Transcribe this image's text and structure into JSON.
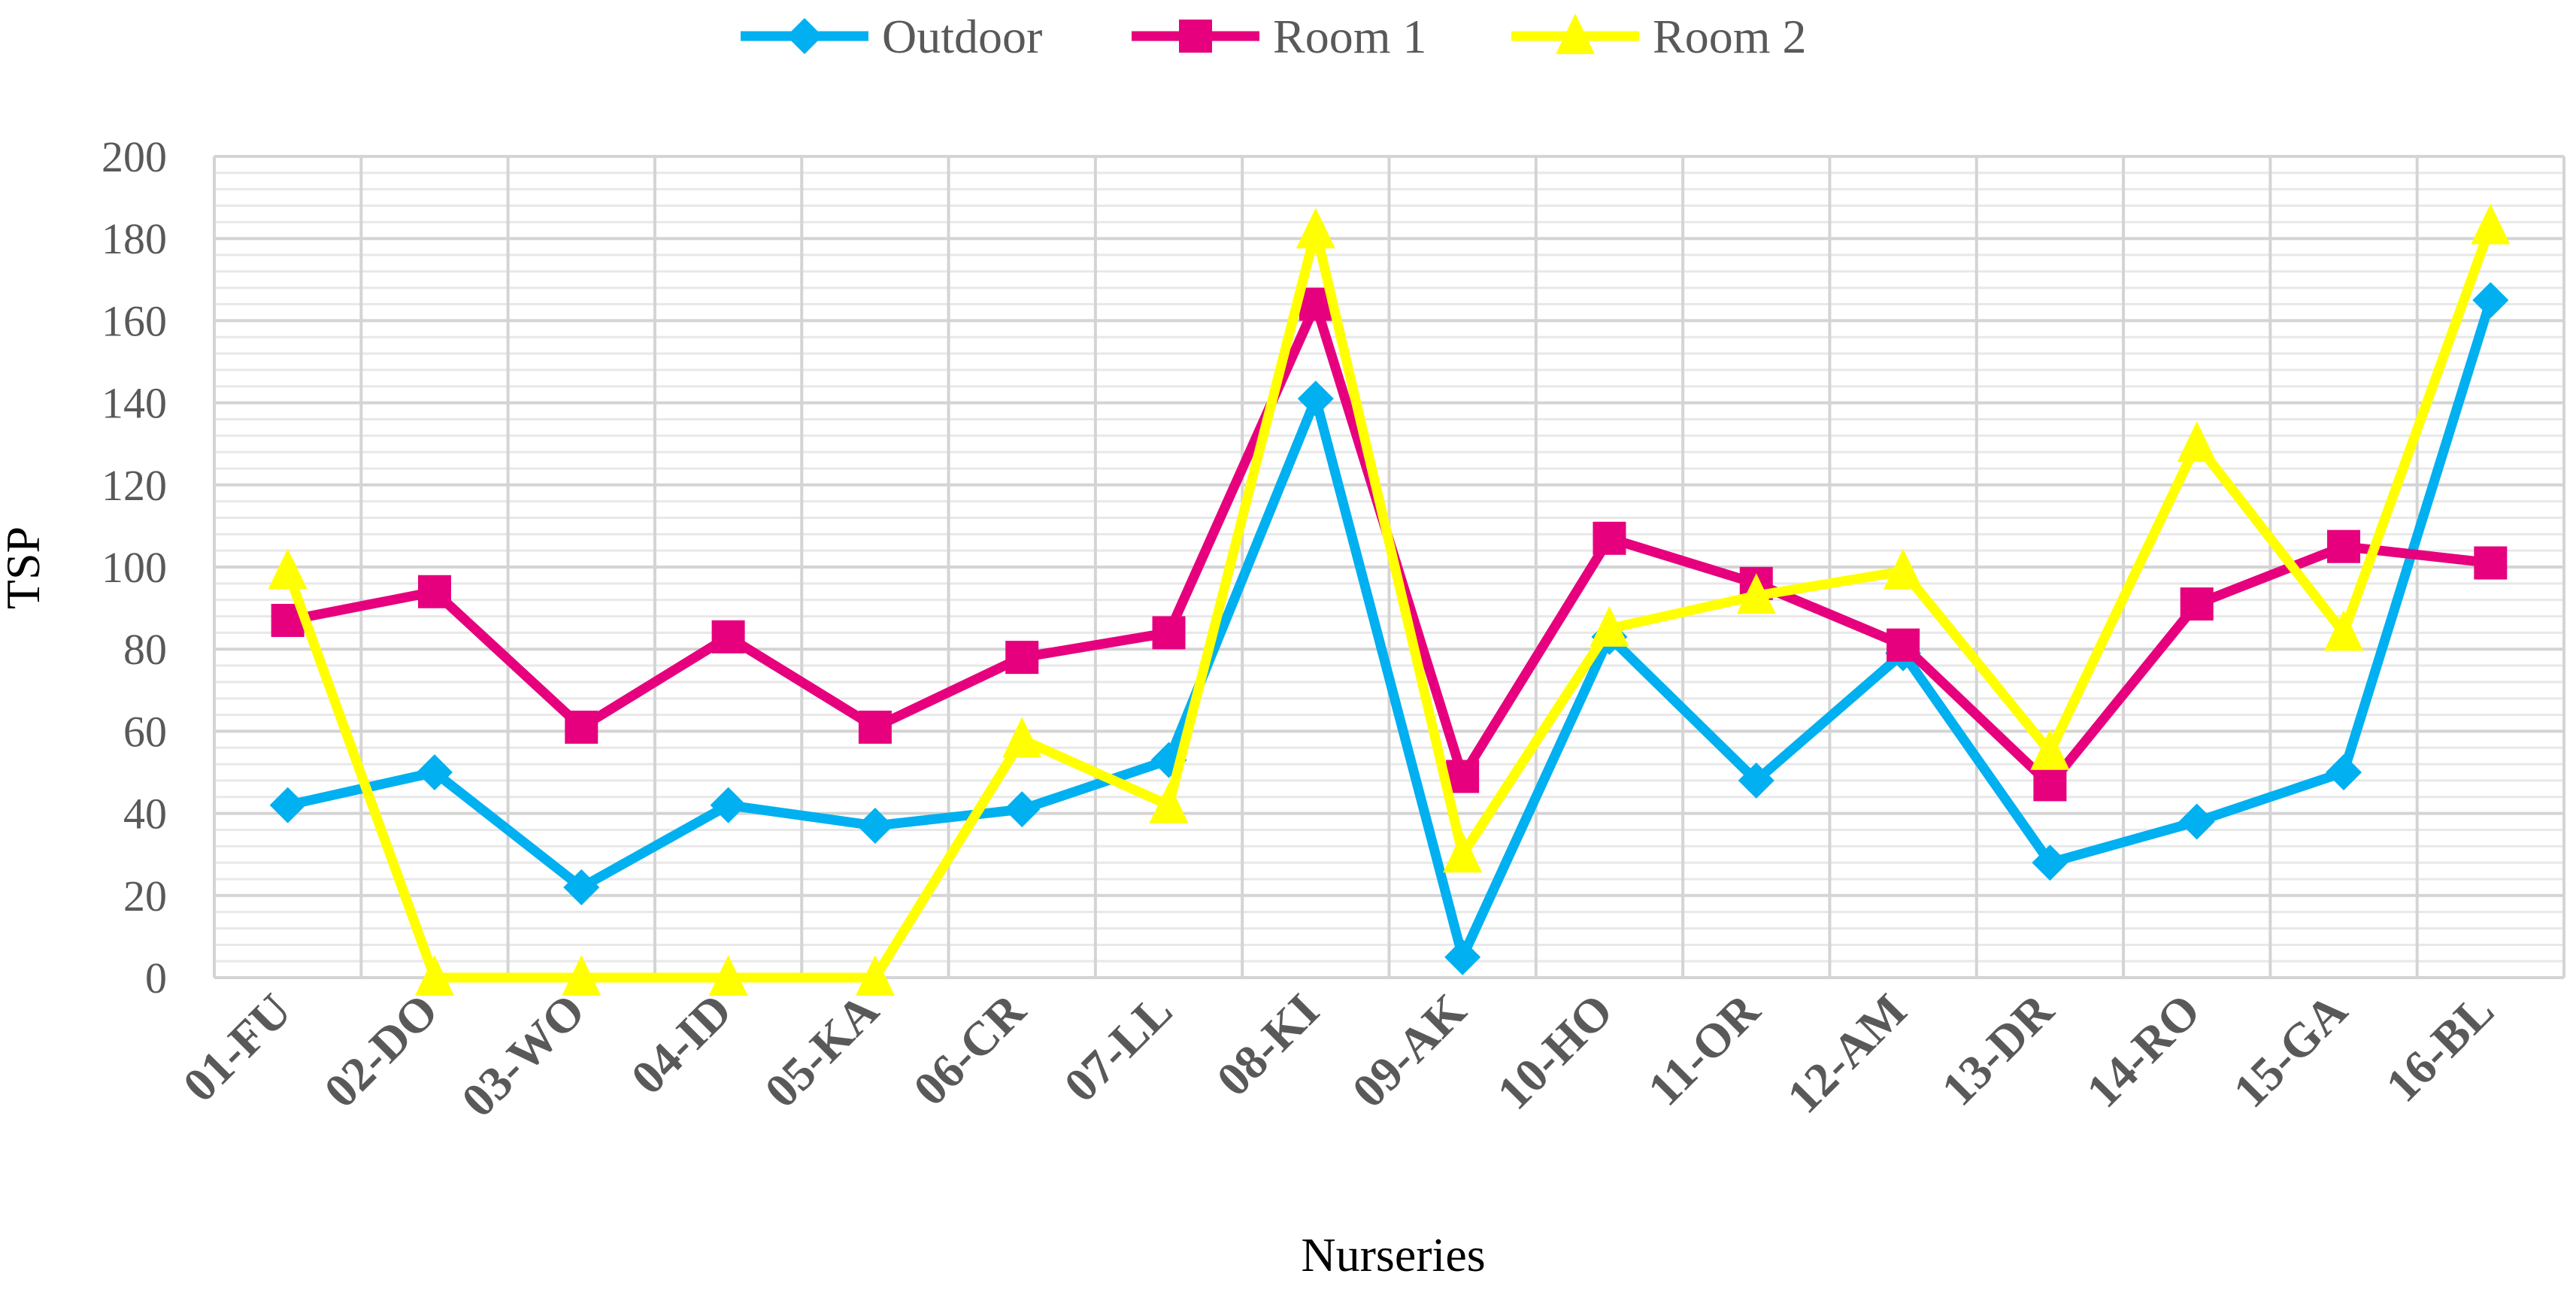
{
  "chart_data": {
    "type": "line",
    "title": "",
    "xlabel": "Nurseries",
    "ylabel": "TSP",
    "ylim": [
      0,
      200
    ],
    "y_major_step": 20,
    "y_minor_step": 4,
    "grid": true,
    "legend": "top-center",
    "categories": [
      "01-FU",
      "02-DO",
      "03-WO",
      "04-ID",
      "05-KA",
      "06-CR",
      "07-LL",
      "08-KI",
      "09-AK",
      "10-HO",
      "11-OR",
      "12-AM",
      "13-DR",
      "14-RO",
      "15-GA",
      "16-BL"
    ],
    "series": [
      {
        "name": "Outdoor",
        "color": "#00b0f0",
        "marker": "diamond",
        "values": [
          42,
          50,
          22,
          42,
          37,
          41,
          53,
          141,
          5,
          83,
          48,
          79,
          28,
          38,
          50,
          165
        ]
      },
      {
        "name": "Room 1",
        "color": "#e6007e",
        "marker": "square",
        "values": [
          87,
          94,
          61,
          83,
          61,
          78,
          84,
          164,
          49,
          107,
          96,
          81,
          47,
          91,
          105,
          101
        ]
      },
      {
        "name": "Room 2",
        "color": "#ffff00",
        "marker": "triangle",
        "values": [
          99,
          0,
          0,
          0,
          0,
          58,
          42,
          182,
          30,
          85,
          93,
          99,
          55,
          130,
          84,
          183
        ]
      }
    ]
  }
}
